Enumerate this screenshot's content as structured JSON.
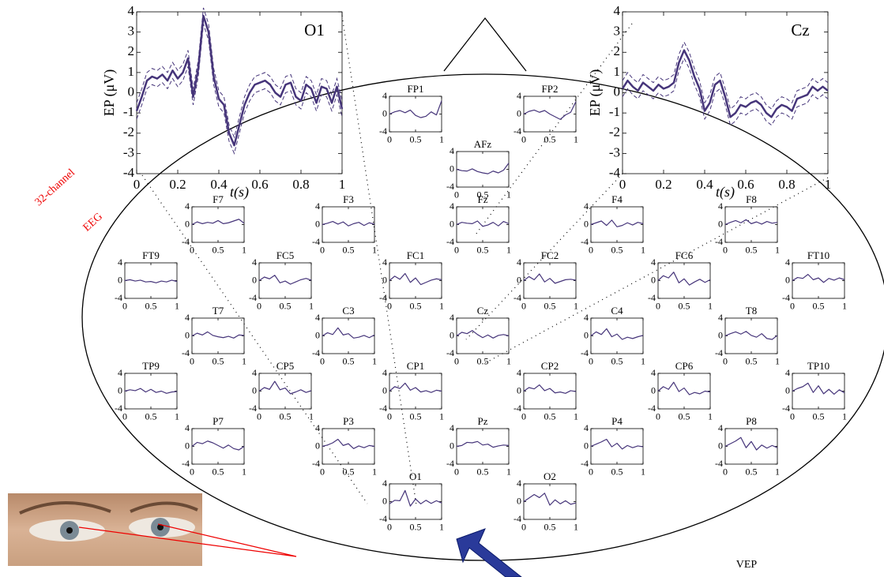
{
  "chart_data": [
    {
      "type": "line",
      "title": "O1",
      "y_label": "EP (μV)",
      "x_label": "t(s)",
      "color": "#46357a",
      "ci_halfwidth": 0.4,
      "x": [
        0,
        0.025,
        0.05,
        0.075,
        0.1,
        0.125,
        0.15,
        0.175,
        0.2,
        0.225,
        0.25,
        0.275,
        0.3,
        0.325,
        0.35,
        0.375,
        0.4,
        0.425,
        0.45,
        0.475,
        0.5,
        0.525,
        0.55,
        0.575,
        0.6,
        0.625,
        0.65,
        0.675,
        0.7,
        0.725,
        0.75,
        0.775,
        0.8,
        0.825,
        0.85,
        0.875,
        0.9,
        0.925,
        0.95,
        0.975,
        1
      ],
      "values": [
        -0.9,
        -0.2,
        0.6,
        0.8,
        0.7,
        0.9,
        0.6,
        1.1,
        0.7,
        1.0,
        1.7,
        -0.2,
        1.2,
        3.8,
        3.0,
        0.8,
        -0.3,
        -0.6,
        -2.0,
        -2.6,
        -1.6,
        -0.6,
        0.0,
        0.4,
        0.5,
        0.6,
        0.4,
        0.0,
        -0.2,
        0.4,
        0.5,
        -0.2,
        -0.4,
        0.4,
        0.2,
        -0.5,
        0.3,
        0.2,
        -0.5,
        0.3,
        -0.8
      ],
      "xlim": [
        0,
        1
      ],
      "ylim": [
        -4,
        4
      ],
      "xticks": [
        0,
        0.2,
        0.4,
        0.6,
        0.8,
        1
      ],
      "yticks": [
        -4,
        -3,
        -2,
        -1,
        0,
        1,
        2,
        3,
        4
      ]
    },
    {
      "type": "line",
      "title": "Cz",
      "y_label": "EP (μV)",
      "x_label": "t(s)",
      "color": "#46357a",
      "ci_halfwidth": 0.4,
      "x": [
        0,
        0.025,
        0.05,
        0.075,
        0.1,
        0.125,
        0.15,
        0.175,
        0.2,
        0.225,
        0.25,
        0.275,
        0.3,
        0.325,
        0.35,
        0.375,
        0.4,
        0.425,
        0.45,
        0.475,
        0.5,
        0.525,
        0.55,
        0.575,
        0.6,
        0.625,
        0.65,
        0.675,
        0.7,
        0.725,
        0.75,
        0.775,
        0.8,
        0.825,
        0.85,
        0.875,
        0.9,
        0.925,
        0.95,
        0.975,
        1
      ],
      "values": [
        0.2,
        0.6,
        0.3,
        0.1,
        0.5,
        0.3,
        0.1,
        0.4,
        0.2,
        0.3,
        0.5,
        1.5,
        2.1,
        1.6,
        0.8,
        0.2,
        -0.9,
        -0.5,
        0.4,
        0.6,
        -0.2,
        -1.2,
        -1.0,
        -0.6,
        -0.7,
        -0.5,
        -0.4,
        -0.6,
        -1.0,
        -1.2,
        -0.8,
        -0.6,
        -0.7,
        -0.9,
        -0.3,
        -0.2,
        -0.1,
        0.3,
        0.1,
        0.3,
        0.1
      ],
      "xlim": [
        0,
        1
      ],
      "ylim": [
        -4,
        4
      ],
      "xticks": [
        0,
        0.2,
        0.4,
        0.6,
        0.8,
        1
      ],
      "yticks": [
        -4,
        -3,
        -2,
        -1,
        0,
        1,
        2,
        3,
        4
      ]
    }
  ],
  "small_axes": {
    "x": [
      0,
      0.1,
      0.2,
      0.3,
      0.4,
      0.5,
      0.6,
      0.7,
      0.8,
      0.9,
      1
    ],
    "xlim": [
      0,
      1
    ],
    "ylim": [
      -4,
      4
    ],
    "xticks": [
      0,
      0.5,
      1
    ],
    "yticks": [
      -4,
      0,
      4
    ],
    "color": "#46357a"
  },
  "channels": [
    {
      "name": "FP1",
      "values": [
        0,
        0.5,
        0.8,
        0.3,
        0.9,
        -0.3,
        -0.8,
        -0.5,
        0.5,
        -0.2,
        3.0
      ]
    },
    {
      "name": "FP2",
      "values": [
        0,
        0.6,
        0.9,
        0.4,
        0.8,
        0,
        -0.6,
        -1.2,
        -0.2,
        0.4,
        2.8
      ]
    },
    {
      "name": "AFz",
      "values": [
        0,
        -0.3,
        -0.4,
        0.1,
        -0.5,
        -0.8,
        -1.0,
        -0.4,
        -0.8,
        -0.2,
        1.4
      ]
    },
    {
      "name": "F7",
      "values": [
        0,
        0.6,
        0.2,
        0.5,
        0.3,
        0.9,
        0.2,
        0.4,
        0.8,
        1.2,
        0.3
      ]
    },
    {
      "name": "F3",
      "values": [
        0,
        0.3,
        0.7,
        0.1,
        0.6,
        -0.3,
        0.2,
        0.5,
        -0.2,
        0.4,
        0.1
      ]
    },
    {
      "name": "Fz",
      "values": [
        0,
        0.5,
        0.3,
        0.2,
        0.8,
        -0.4,
        -0.1,
        0.5,
        -0.3,
        0.7,
        0.2
      ]
    },
    {
      "name": "F4",
      "values": [
        0,
        0.4,
        0.8,
        -0.2,
        1.0,
        -0.5,
        -0.2,
        0.4,
        -0.1,
        0.5,
        0.2
      ]
    },
    {
      "name": "F8",
      "values": [
        0,
        0.5,
        0.9,
        0.4,
        1.1,
        0.2,
        0.6,
        0.1,
        0.7,
        0.3,
        0.5
      ]
    },
    {
      "name": "FT9",
      "values": [
        0,
        0.2,
        -0.1,
        0.1,
        -0.3,
        -0.2,
        -0.5,
        -0.1,
        -0.3,
        0.1,
        -0.2
      ]
    },
    {
      "name": "FC5",
      "values": [
        0,
        0.8,
        0.4,
        1.2,
        -0.5,
        -0.1,
        -0.8,
        -0.3,
        0.2,
        0.5,
        0.1
      ]
    },
    {
      "name": "FC1",
      "values": [
        0,
        1.0,
        0.3,
        1.6,
        -0.4,
        0.6,
        -0.9,
        -0.4,
        0.1,
        0.4,
        0.2
      ]
    },
    {
      "name": "FC2",
      "values": [
        0,
        0.9,
        0.2,
        1.5,
        -0.3,
        0.5,
        -0.6,
        -0.2,
        0.2,
        0.3,
        0.1
      ]
    },
    {
      "name": "FC6",
      "values": [
        0,
        1.1,
        0.6,
        1.9,
        -0.5,
        0.4,
        -1.0,
        -0.3,
        0.3,
        -0.4,
        0.2
      ]
    },
    {
      "name": "FT10",
      "values": [
        0,
        0.7,
        0.5,
        1.4,
        0.2,
        0.6,
        -0.4,
        0.5,
        0.1,
        0.6,
        0.2
      ]
    },
    {
      "name": "T7",
      "values": [
        0,
        0.6,
        0.2,
        0.9,
        0.1,
        -0.2,
        -0.4,
        -0.1,
        -0.5,
        0.2,
        0.1
      ]
    },
    {
      "name": "C3",
      "values": [
        0,
        0.7,
        0.3,
        1.8,
        0.2,
        0.5,
        -0.5,
        -0.3,
        0.1,
        -0.4,
        0.2
      ]
    },
    {
      "name": "Cz",
      "values": [
        0,
        0.8,
        0.5,
        1.2,
        0.3,
        -0.4,
        0.2,
        -0.5,
        0.1,
        0.3,
        0
      ]
    },
    {
      "name": "C4",
      "values": [
        0,
        0.9,
        0.3,
        1.6,
        -0.2,
        0.4,
        -0.8,
        -0.3,
        -0.6,
        -0.2,
        0.1
      ]
    },
    {
      "name": "T8",
      "values": [
        0,
        0.5,
        0.9,
        0.4,
        1.0,
        0.1,
        -0.3,
        0.5,
        -0.6,
        -0.8,
        0.1
      ]
    },
    {
      "name": "TP9",
      "values": [
        0,
        0.3,
        0.1,
        0.6,
        -0.2,
        0.4,
        -0.3,
        0,
        -0.5,
        -0.2,
        -0.1
      ]
    },
    {
      "name": "CP5",
      "values": [
        0,
        0.8,
        0.4,
        2.2,
        0.3,
        0.7,
        -0.6,
        -0.2,
        0.3,
        -0.3,
        0.1
      ]
    },
    {
      "name": "CP1",
      "values": [
        0,
        1.0,
        0.6,
        1.8,
        0.2,
        0.8,
        -0.2,
        0.1,
        -0.3,
        0.2,
        0
      ]
    },
    {
      "name": "CP2",
      "values": [
        0,
        0.8,
        0.5,
        1.4,
        0.1,
        0.6,
        -0.4,
        -0.2,
        -0.5,
        0.1,
        -0.1
      ]
    },
    {
      "name": "CP6",
      "values": [
        0,
        1.0,
        0.4,
        2.0,
        -0.1,
        0.7,
        -0.8,
        -0.3,
        -0.6,
        0,
        -0.2
      ]
    },
    {
      "name": "TP10",
      "values": [
        0,
        0.6,
        1.0,
        1.8,
        -0.3,
        1.2,
        -0.6,
        0.4,
        -0.7,
        0.3,
        -0.4
      ]
    },
    {
      "name": "P7",
      "values": [
        0,
        0.9,
        0.6,
        1.2,
        0.8,
        0.2,
        -0.4,
        0.3,
        -0.5,
        -0.8,
        0
      ]
    },
    {
      "name": "P3",
      "values": [
        0,
        0.3,
        0.8,
        1.6,
        0.2,
        0.6,
        -0.5,
        0.1,
        -0.3,
        0.2,
        0
      ]
    },
    {
      "name": "Pz",
      "values": [
        0,
        0.2,
        0.9,
        0.8,
        1.1,
        0.3,
        0.5,
        -0.2,
        0.1,
        0.3,
        0.2
      ]
    },
    {
      "name": "P4",
      "values": [
        0,
        0.5,
        1.0,
        1.6,
        -0.1,
        0.7,
        -0.6,
        0.2,
        -0.3,
        0.1,
        -0.1
      ]
    },
    {
      "name": "P8",
      "values": [
        0,
        0.6,
        1.2,
        2.0,
        -0.3,
        1.1,
        -0.8,
        0.3,
        -0.4,
        0.2,
        -0.3
      ]
    },
    {
      "name": "O1",
      "values": [
        -0.5,
        0.3,
        0.2,
        2.5,
        -1.0,
        0.6,
        -0.5,
        0.3,
        -0.4,
        0.2,
        -0.3
      ]
    },
    {
      "name": "O2",
      "values": [
        0,
        0.8,
        1.6,
        0.9,
        1.9,
        -0.8,
        0.4,
        -0.5,
        0.2,
        -0.6,
        -0.3
      ]
    }
  ],
  "labels": {
    "montage_line1": "32-channel",
    "montage_line2": "EEG",
    "stimulus": "VEP"
  }
}
